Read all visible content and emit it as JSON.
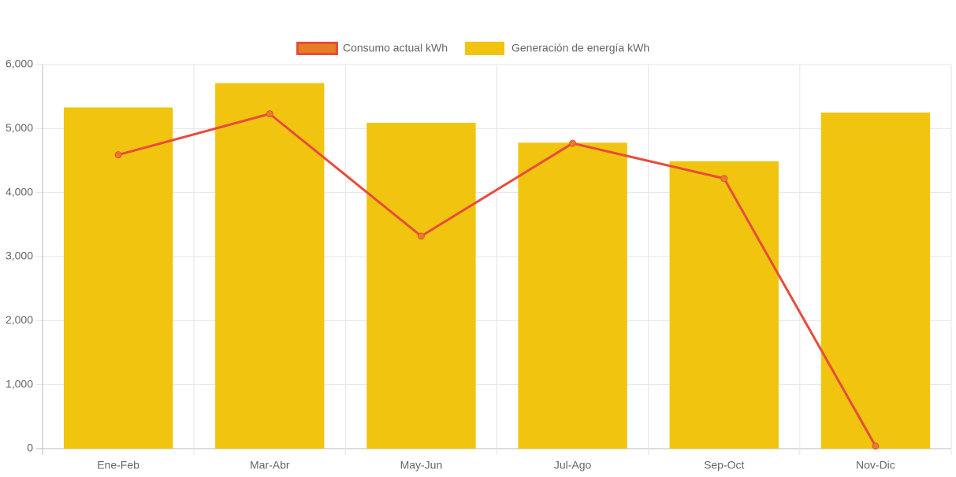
{
  "chart_data": {
    "type": "combo",
    "categories": [
      "Ene-Feb",
      "Mar-Abr",
      "May-Jun",
      "Jul-Ago",
      "Sep-Oct",
      "Nov-Dic"
    ],
    "series": [
      {
        "name": "Consumo actual kWh",
        "type": "line",
        "color": "#e74c3c",
        "point_color": "#e67e22",
        "values": [
          4590,
          5230,
          3320,
          4770,
          4220,
          40
        ]
      },
      {
        "name": "Generación de energía kWh",
        "type": "bar",
        "color": "#f1c40f",
        "values": [
          5330,
          5710,
          5090,
          4780,
          4490,
          5250
        ]
      }
    ],
    "ylim": [
      0,
      6000
    ],
    "yticks": [
      0,
      {
        "value": 1000,
        "label": "1,000"
      },
      {
        "value": 2000,
        "label": "2,000"
      },
      {
        "value": 3000,
        "label": "3,000"
      },
      {
        "value": 4000,
        "label": "4,000"
      },
      {
        "value": 5000,
        "label": "5,000"
      },
      {
        "value": 6000,
        "label": "6,000"
      }
    ],
    "grid": true,
    "legend": "top"
  }
}
